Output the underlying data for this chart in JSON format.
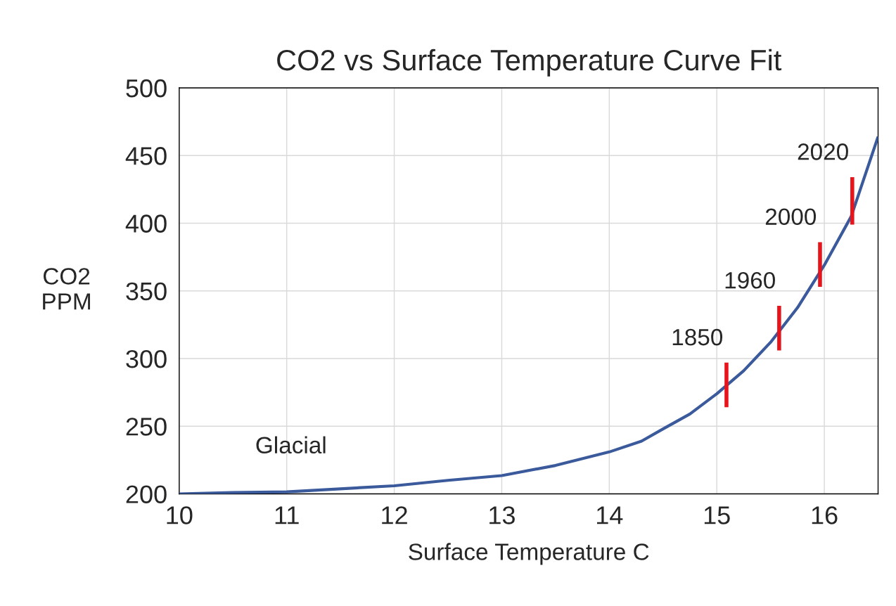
{
  "chart_data": {
    "type": "line",
    "title": "CO2 vs Surface Temperature Curve Fit",
    "xlabel": "Surface Temperature C",
    "ylabel": "CO2\nPPM",
    "xlim": [
      10,
      16.5
    ],
    "xticks": [
      10,
      11,
      12,
      13,
      14,
      15,
      16
    ],
    "ylim": [
      200,
      500
    ],
    "yticks": [
      200,
      250,
      300,
      350,
      400,
      450,
      500
    ],
    "grid": true,
    "line_style": "solid",
    "marker": "none",
    "series": [
      {
        "color": "#3a5a9c",
        "x": [
          10,
          10.5,
          11,
          12,
          12.5,
          13,
          13.5,
          14,
          14.3,
          14.5,
          14.75,
          15,
          15.25,
          15.5,
          15.75,
          16,
          16.25,
          16.5
        ],
        "values": [
          200,
          201,
          201.5,
          206,
          210,
          213.5,
          221,
          231,
          239,
          248,
          259,
          274,
          291,
          312,
          337.5,
          369,
          405,
          464
        ]
      },
      {
        "name": "1850",
        "color": "#e8141c",
        "x": [
          15.09,
          15.09
        ],
        "values": [
          264,
          297
        ]
      },
      {
        "name": "1960",
        "color": "#e8141c",
        "x": [
          15.58,
          15.58
        ],
        "values": [
          306,
          339
        ]
      },
      {
        "name": "2000",
        "color": "#e8141c",
        "x": [
          15.96,
          15.96
        ],
        "values": [
          353,
          386
        ]
      },
      {
        "name": "2020",
        "color": "#e8141c",
        "x": [
          16.26,
          16.26
        ],
        "values": [
          399,
          434
        ]
      }
    ],
    "annotations": [
      "Glacial"
    ]
  }
}
